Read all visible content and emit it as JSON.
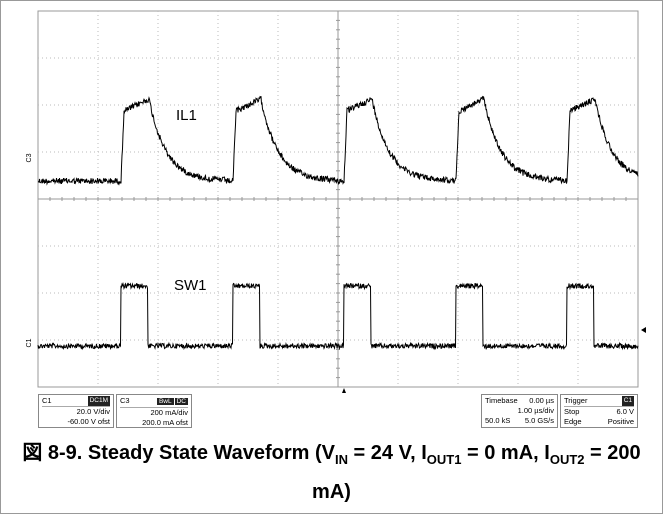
{
  "screen": {
    "trace_labels": [
      "IL1",
      "SW1"
    ],
    "channel_markers": [
      "C3",
      "C1"
    ]
  },
  "info": {
    "c1": {
      "name": "C1",
      "badge": "DC1M",
      "lines": [
        "20.0 V/div",
        "-60.00 V ofst"
      ]
    },
    "c3": {
      "name": "C3",
      "badges": [
        "BwL",
        "DC"
      ],
      "lines": [
        "200 mA/div",
        "200.0 mA ofst"
      ]
    },
    "timebase": {
      "rows": [
        [
          "Timebase",
          "0.00 µs"
        ],
        [
          "",
          "1.00 µs/div"
        ],
        [
          "50.0 kS",
          "5.0 GS/s"
        ]
      ]
    },
    "trigger": {
      "name": "Trigger",
      "badge": "C1",
      "rows": [
        [
          "Stop",
          "6.0 V"
        ],
        [
          "Edge",
          "Positive"
        ]
      ]
    }
  },
  "caption": [
    "図 8-9. Steady State Waveform (V",
    "IN",
    " = 24 V, I",
    "OUT1",
    " = 0 mA, I",
    "OUT2",
    " = 200 mA)"
  ]
}
